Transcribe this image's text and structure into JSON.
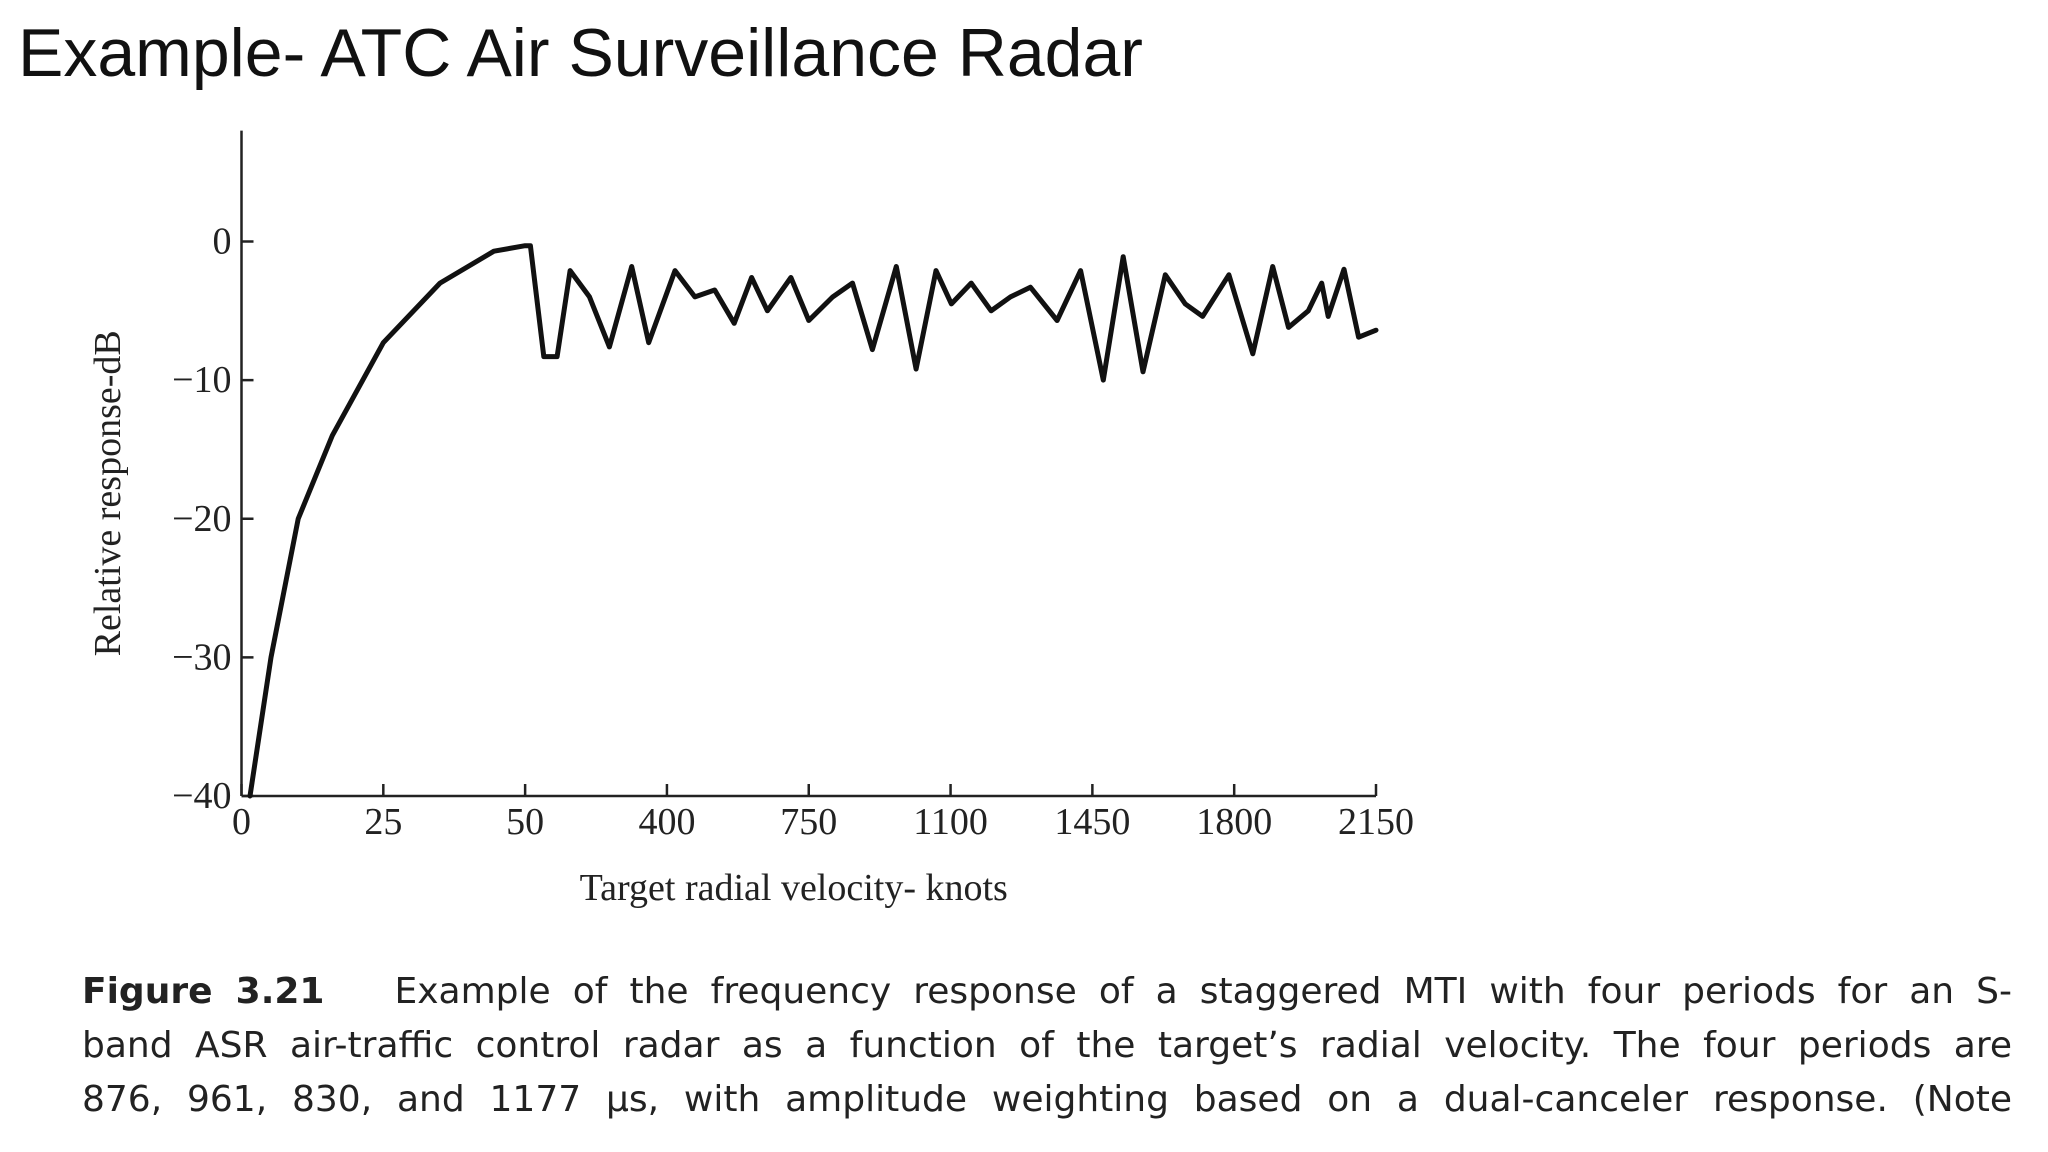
{
  "slide_title": "Example- ATC Air Surveillance Radar",
  "chart_data": {
    "type": "line",
    "xlabel": "Target radial velocity- knots",
    "ylabel": "Relative response-dB",
    "x": [
      1.5,
      5.2,
      10,
      16,
      25,
      35,
      44.5,
      50,
      63,
      96,
      129,
      161,
      209,
      258,
      313,
      355,
      420,
      469,
      518,
      566,
      609,
      648,
      706,
      750,
      809,
      858,
      907,
      966,
      1015,
      1064,
      1102,
      1151,
      1200,
      1248,
      1297,
      1363,
      1421,
      1477,
      1526,
      1575,
      1630,
      1679,
      1722,
      1787,
      1846,
      1895,
      1934,
      1983,
      2016,
      2032,
      2071,
      2107,
      2150
    ],
    "series": [
      {
        "color": "#111111",
        "values": [
          -40,
          -30,
          -20,
          -14,
          -7.3,
          -3,
          -0.7,
          -0.3,
          -0.3,
          -8.3,
          -8.3,
          -2.1,
          -4,
          -7.6,
          -1.8,
          -7.3,
          -2.1,
          -4,
          -3.5,
          -5.9,
          -2.6,
          -5,
          -2.6,
          -5.7,
          -4,
          -3,
          -7.8,
          -1.8,
          -9.2,
          -2.1,
          -4.5,
          -3,
          -5,
          -4,
          -3.3,
          -5.7,
          -2.1,
          -10,
          -1.1,
          -9.4,
          -2.4,
          -4.5,
          -5.4,
          -2.4,
          -8.1,
          -1.8,
          -6.2,
          -5,
          -3,
          -5.4,
          -2,
          -6.9,
          -6.4
        ]
      }
    ],
    "xlim": [
      0,
      2150
    ],
    "xticks": [
      0,
      25,
      50,
      400,
      750,
      1100,
      1450,
      1800,
      2150
    ],
    "ylim": [
      -40,
      8
    ],
    "yticks": [
      0,
      {
        "value": -10,
        "label": "−10"
      },
      {
        "value": -20,
        "label": "−20"
      },
      {
        "value": -30,
        "label": "−30"
      },
      {
        "value": -40,
        "label": "−40"
      }
    ]
  },
  "caption": {
    "label": "Figure 3.21",
    "lines": [
      "Example of the frequency response of a staggered MTI with four periods for an S-",
      "band ASR air-traffic control radar as a function of the target’s radial velocity. The four periods are",
      "876, 961, 830, and 1177 μs, with amplitude weighting based on a dual-canceler response. (Note"
    ]
  }
}
